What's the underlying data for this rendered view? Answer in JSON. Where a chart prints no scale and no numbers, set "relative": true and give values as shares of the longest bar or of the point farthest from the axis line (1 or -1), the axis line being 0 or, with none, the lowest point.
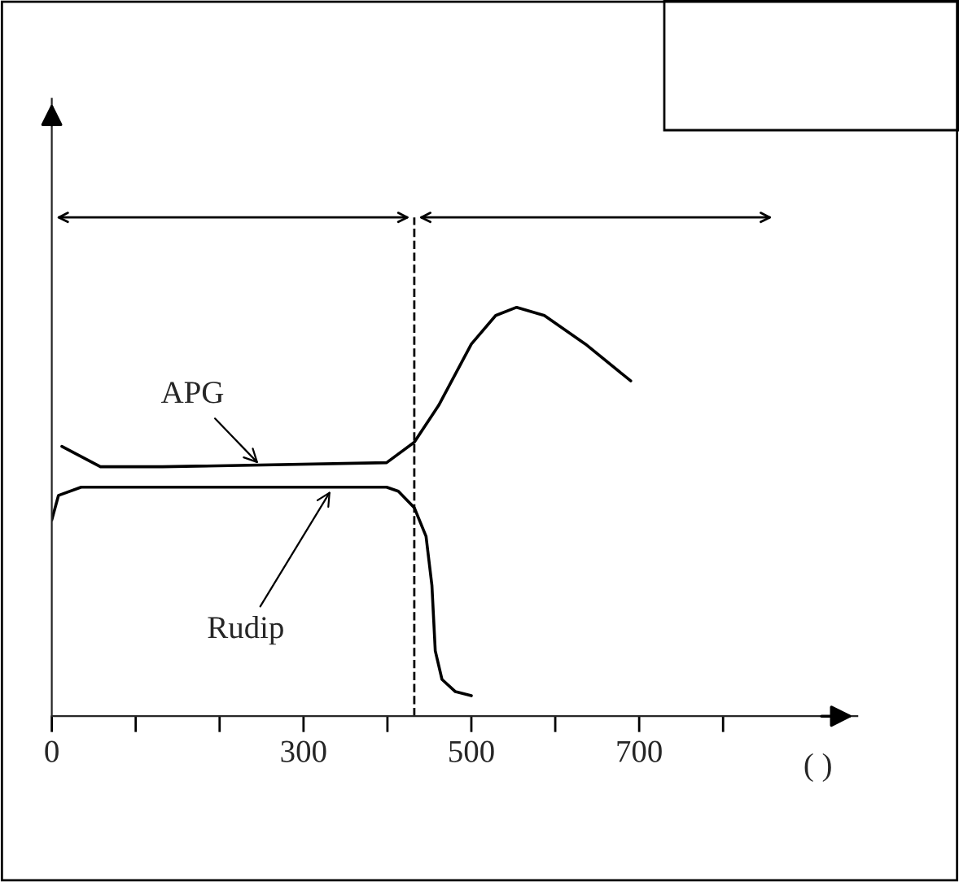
{
  "chart_data": {
    "type": "line",
    "relative": true,
    "xlabel": "( )",
    "xlim": [
      0,
      960
    ],
    "xticks": [
      0,
      {
        "value": 100,
        "label": null
      },
      {
        "value": 200,
        "label": null
      },
      300,
      {
        "value": 400,
        "label": null
      },
      500,
      {
        "value": 600,
        "label": null
      },
      700,
      {
        "value": 800,
        "label": null
      }
    ],
    "series": [
      {
        "color": "#000000",
        "x": [
          12,
          58,
          132,
          399,
          432,
          461,
          500,
          529,
          554,
          587,
          636,
          690
        ],
        "values": [
          0.66,
          0.61,
          0.61,
          0.62,
          0.67,
          0.76,
          0.91,
          0.98,
          1,
          0.98,
          0.91,
          0.82
        ]
      },
      {
        "color": "#000000",
        "x": [
          0,
          8,
          35,
          132,
          399,
          413,
          432,
          446,
          453,
          457,
          465,
          481,
          500
        ],
        "values": [
          0.48,
          0.54,
          0.56,
          0.56,
          0.56,
          0.55,
          0.51,
          0.44,
          0.32,
          0.16,
          0.09,
          0.06,
          0.05
        ]
      }
    ],
    "annotations": [
      {
        "text": "APG",
        "x": 250,
        "y": 0.61
      },
      {
        "text": "Rudip",
        "x": 335,
        "y": 0.56
      }
    ],
    "ref_lines": [
      {
        "axis": "x",
        "value": 432,
        "line_style": "dashed",
        "color": "#000000"
      }
    ],
    "grid": false,
    "legend": false,
    "marker": "none",
    "line_style": "solid"
  }
}
